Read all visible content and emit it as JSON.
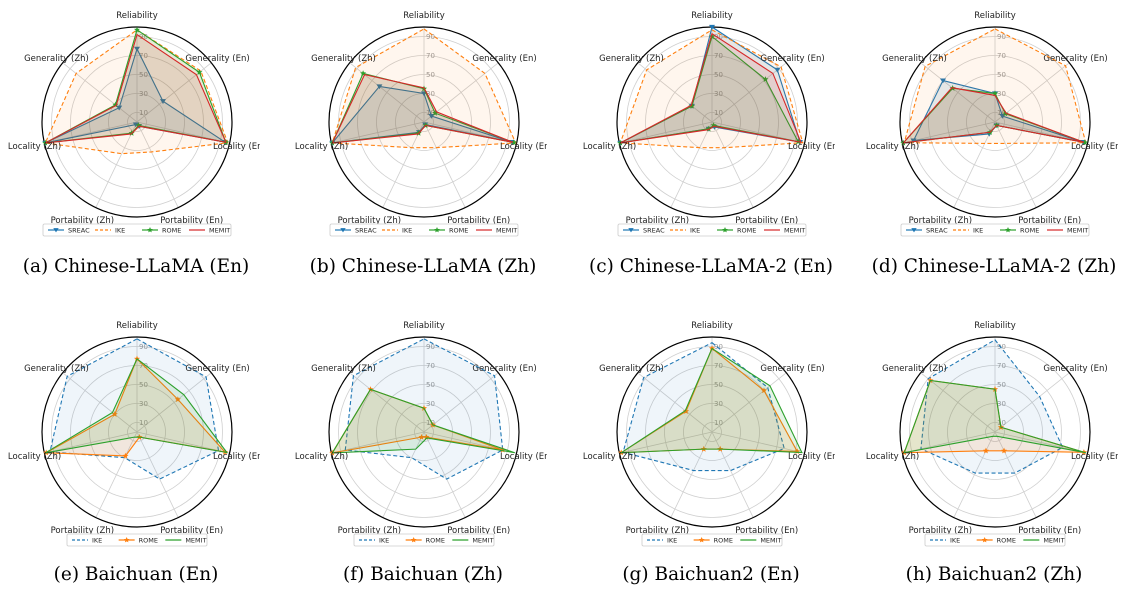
{
  "colors": {
    "SREAC": "#1f77b4",
    "IKE": "#ff7f0e",
    "ROME": "#2ca02c",
    "MEMIT": "#d62728",
    "IKE_b": "#1f77b4",
    "ROME_b": "#ff7f0e",
    "MEMIT_b": "#2ca02c"
  },
  "chart_data": [
    {
      "type": "radar",
      "caption": "(a)  Chinese-LLaMA (En)",
      "axes": [
        "Reliability",
        "Generality (En)",
        "Locality (En)",
        "Portability (En)",
        "Portability (Zh)",
        "Locality (Zh)",
        "Generality (Zh)"
      ],
      "rticks": [
        10,
        30,
        50,
        70,
        90
      ],
      "rlim": [
        0,
        100
      ],
      "series": [
        {
          "name": "SREAC",
          "style": "solid",
          "marker": "triangle",
          "color": "SREAC",
          "values": [
            77,
            35,
            95,
            5,
            3,
            99,
            24
          ]
        },
        {
          "name": "IKE",
          "style": "dashed",
          "marker": "none",
          "color": "IKE",
          "values": [
            97,
            86,
            98,
            35,
            37,
            99,
            82
          ]
        },
        {
          "name": "ROME",
          "style": "solid",
          "marker": "star",
          "color": "ROME",
          "values": [
            97,
            84,
            96,
            4,
            13,
            99,
            29
          ]
        },
        {
          "name": "MEMIT",
          "style": "solid",
          "marker": "none",
          "color": "MEMIT",
          "values": [
            92,
            80,
            96,
            5,
            14,
            99,
            28
          ]
        }
      ]
    },
    {
      "type": "radar",
      "caption": "(b)  Chinese-LLaMA (Zh)",
      "axes": [
        "Reliability",
        "Generality (En)",
        "Locality (En)",
        "Portability (En)",
        "Portability (Zh)",
        "Locality (Zh)",
        "Generality (Zh)"
      ],
      "rticks": [
        10,
        30,
        50,
        70,
        90
      ],
      "rlim": [
        0,
        100
      ],
      "series": [
        {
          "name": "SREAC",
          "style": "solid",
          "marker": "triangle",
          "color": "SREAC",
          "values": [
            30,
            10,
            95,
            3,
            12,
            99,
            60
          ]
        },
        {
          "name": "IKE",
          "style": "dashed",
          "marker": "none",
          "color": "IKE",
          "values": [
            98,
            82,
            99,
            30,
            30,
            99,
            92
          ]
        },
        {
          "name": "ROME",
          "style": "solid",
          "marker": "star",
          "color": "ROME",
          "values": [
            35,
            15,
            97,
            4,
            13,
            99,
            82
          ]
        },
        {
          "name": "MEMIT",
          "style": "solid",
          "marker": "none",
          "color": "MEMIT",
          "values": [
            36,
            17,
            96,
            4,
            14,
            99,
            80
          ]
        }
      ]
    },
    {
      "type": "radar",
      "caption": "(c)  Chinese-LLaMA-2 (En)",
      "axes": [
        "Reliability",
        "Generality (En)",
        "Locality (En)",
        "Portability (En)",
        "Portability (Zh)",
        "Locality (Zh)",
        "Generality (Zh)"
      ],
      "rticks": [
        10,
        30,
        50,
        70,
        90
      ],
      "rlim": [
        0,
        100
      ],
      "series": [
        {
          "name": "SREAC",
          "style": "solid",
          "marker": "triangle",
          "color": "SREAC",
          "values": [
            100,
            88,
            95,
            6,
            8,
            99,
            27
          ]
        },
        {
          "name": "IKE",
          "style": "dashed",
          "marker": "none",
          "color": "IKE",
          "values": [
            97,
            93,
            98,
            30,
            30,
            99,
            88
          ]
        },
        {
          "name": "ROME",
          "style": "solid",
          "marker": "star",
          "color": "ROME",
          "values": [
            90,
            72,
            93,
            4,
            8,
            99,
            27
          ]
        },
        {
          "name": "MEMIT",
          "style": "solid",
          "marker": "none",
          "color": "MEMIT",
          "values": [
            93,
            82,
            96,
            5,
            9,
            99,
            28
          ]
        }
      ]
    },
    {
      "type": "radar",
      "caption": "(d)  Chinese-LLaMA-2 (Zh)",
      "axes": [
        "Reliability",
        "Generality (En)",
        "Locality (En)",
        "Portability (En)",
        "Portability (Zh)",
        "Locality (Zh)",
        "Generality (Zh)"
      ],
      "rticks": [
        10,
        30,
        50,
        70,
        90
      ],
      "rlim": [
        0,
        100
      ],
      "series": [
        {
          "name": "SREAC",
          "style": "solid",
          "marker": "triangle",
          "color": "SREAC",
          "values": [
            30,
            10,
            95,
            4,
            14,
            88,
            70
          ]
        },
        {
          "name": "IKE",
          "style": "dashed",
          "marker": "none",
          "color": "IKE",
          "values": [
            98,
            95,
            98,
            25,
            25,
            98,
            94
          ]
        },
        {
          "name": "ROME",
          "style": "solid",
          "marker": "star",
          "color": "ROME",
          "values": [
            30,
            14,
            97,
            4,
            12,
            99,
            57
          ]
        },
        {
          "name": "MEMIT",
          "style": "solid",
          "marker": "none",
          "color": "MEMIT",
          "values": [
            28,
            15,
            96,
            4,
            12,
            99,
            58
          ]
        }
      ]
    },
    {
      "type": "radar",
      "caption": "(e)  Baichuan (En)",
      "axes": [
        "Reliability",
        "Generality (En)",
        "Locality (En)",
        "Portability (En)",
        "Portability (Zh)",
        "Locality (Zh)",
        "Generality (Zh)"
      ],
      "rticks": [
        10,
        30,
        50,
        70,
        90
      ],
      "rlim": [
        0,
        100
      ],
      "series": [
        {
          "name": "IKE",
          "style": "dashed",
          "marker": "none",
          "color": "IKE_b",
          "values": [
            98,
            93,
            88,
            55,
            30,
            94,
            94
          ]
        },
        {
          "name": "ROME",
          "style": "solid",
          "marker": "star",
          "color": "ROME_b",
          "values": [
            77,
            55,
            95,
            6,
            28,
            98,
            30
          ]
        },
        {
          "name": "MEMIT",
          "style": "solid",
          "marker": "none",
          "color": "MEMIT_b",
          "values": [
            77,
            63,
            97,
            6,
            6,
            99,
            33
          ]
        }
      ]
    },
    {
      "type": "radar",
      "caption": "(f)  Baichuan (Zh)",
      "axes": [
        "Reliability",
        "Generality (En)",
        "Locality (En)",
        "Portability (En)",
        "Portability (Zh)",
        "Locality (Zh)",
        "Generality (Zh)"
      ],
      "rticks": [
        10,
        30,
        50,
        70,
        90
      ],
      "rlim": [
        0,
        100
      ],
      "series": [
        {
          "name": "IKE",
          "style": "dashed",
          "marker": "none",
          "color": "IKE_b",
          "values": [
            98,
            95,
            85,
            55,
            30,
            85,
            95
          ]
        },
        {
          "name": "ROME",
          "style": "solid",
          "marker": "star",
          "color": "ROME_b",
          "values": [
            25,
            12,
            85,
            6,
            6,
            99,
            72
          ]
        },
        {
          "name": "MEMIT",
          "style": "solid",
          "marker": "none",
          "color": "MEMIT_b",
          "values": [
            25,
            12,
            98,
            7,
            20,
            99,
            72
          ]
        }
      ]
    },
    {
      "type": "radar",
      "caption": "(g)  Baichuan2 (En)",
      "axes": [
        "Reliability",
        "Generality (En)",
        "Locality (En)",
        "Portability (En)",
        "Portability (Zh)",
        "Locality (Zh)",
        "Generality (Zh)"
      ],
      "rticks": [
        10,
        30,
        50,
        70,
        90
      ],
      "rlim": [
        0,
        100
      ],
      "series": [
        {
          "name": "IKE",
          "style": "dashed",
          "marker": "none",
          "color": "IKE_b",
          "values": [
            94,
            75,
            78,
            45,
            45,
            96,
            92
          ]
        },
        {
          "name": "ROME",
          "style": "solid",
          "marker": "star",
          "color": "ROME_b",
          "values": [
            88,
            70,
            92,
            20,
            20,
            98,
            35
          ]
        },
        {
          "name": "MEMIT",
          "style": "solid",
          "marker": "none",
          "color": "MEMIT_b",
          "values": [
            88,
            78,
            97,
            20,
            20,
            98,
            36
          ]
        }
      ]
    },
    {
      "type": "radar",
      "caption": "(h)  Baichuan2 (Zh)",
      "axes": [
        "Reliability",
        "Generality (En)",
        "Locality (En)",
        "Portability (En)",
        "Portability (Zh)",
        "Locality (Zh)",
        "Generality (Zh)"
      ],
      "rticks": [
        10,
        30,
        50,
        70,
        90
      ],
      "rlim": [
        0,
        100
      ],
      "series": [
        {
          "name": "IKE",
          "style": "dashed",
          "marker": "none",
          "color": "IKE_b",
          "values": [
            97,
            60,
            73,
            48,
            48,
            80,
            90
          ]
        },
        {
          "name": "ROME",
          "style": "solid",
          "marker": "star",
          "color": "ROME_b",
          "values": [
            45,
            8,
            96,
            22,
            22,
            98,
            87
          ]
        },
        {
          "name": "MEMIT",
          "style": "solid",
          "marker": "none",
          "color": "MEMIT_b",
          "values": [
            45,
            8,
            98,
            5,
            5,
            98,
            87
          ]
        }
      ]
    }
  ]
}
